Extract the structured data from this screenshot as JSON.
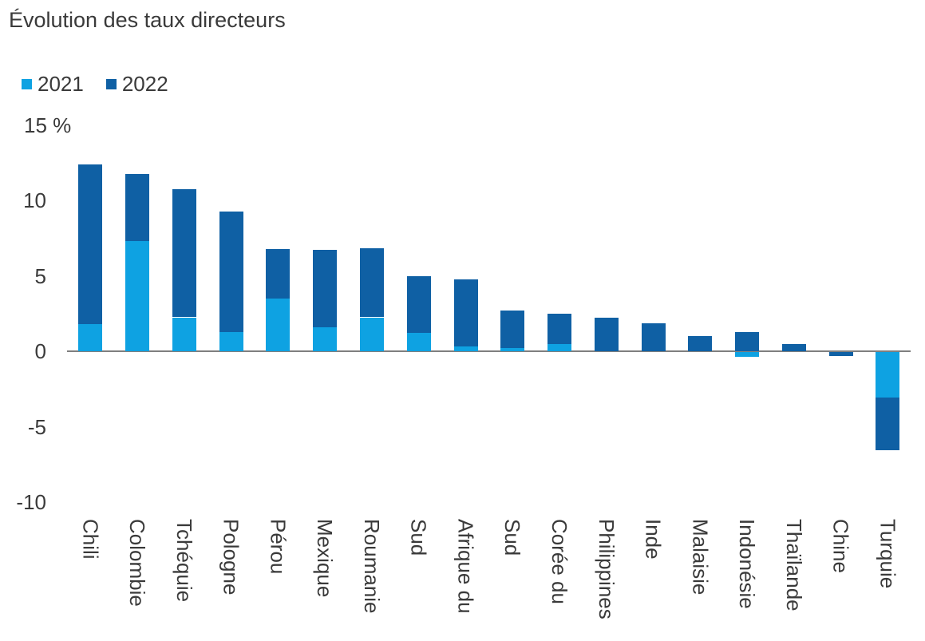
{
  "title": "Évolution des taux directeurs",
  "unit": "%",
  "chart_data": {
    "type": "bar",
    "stacked": true,
    "orientation": "vertical",
    "title": "Évolution des taux directeurs",
    "xlabel": "",
    "ylabel": "%",
    "ylim": [
      -10,
      15
    ],
    "grid": false,
    "legend_position": "top-left",
    "categories": [
      "Chili",
      "Colombie",
      "Tchéquie",
      "Pologne",
      "Pérou",
      "Mexique",
      "Roumanie",
      "Sud",
      "Afrique du",
      "Sud",
      "Corée du",
      "Philippines",
      "Inde",
      "Malaisie",
      "Indonésie",
      "Thaïlande",
      "Chine",
      "Turquie"
    ],
    "series": [
      {
        "name": "2021",
        "color": "#0ea2e2",
        "values": [
          1.8,
          7.3,
          2.25,
          1.25,
          3.5,
          1.6,
          2.25,
          1.2,
          0.3,
          0.2,
          0.5,
          0,
          0,
          0,
          -0.3,
          0,
          0,
          -3.0
        ]
      },
      {
        "name": "2022",
        "color": "#0f60a4",
        "values": [
          10.6,
          4.45,
          8.5,
          8.0,
          3.3,
          5.1,
          4.6,
          3.8,
          4.45,
          2.5,
          2.0,
          2.25,
          1.85,
          1.0,
          1.25,
          0.5,
          -0.25,
          -3.5
        ]
      }
    ],
    "y_ticks": [
      {
        "value": 15,
        "label": "15 %",
        "align": "left"
      },
      {
        "value": 10,
        "label": "10"
      },
      {
        "value": 5,
        "label": "5"
      },
      {
        "value": 0,
        "label": "0"
      },
      {
        "value": -5,
        "label": "-5"
      },
      {
        "value": -10,
        "label": "-10"
      }
    ]
  }
}
